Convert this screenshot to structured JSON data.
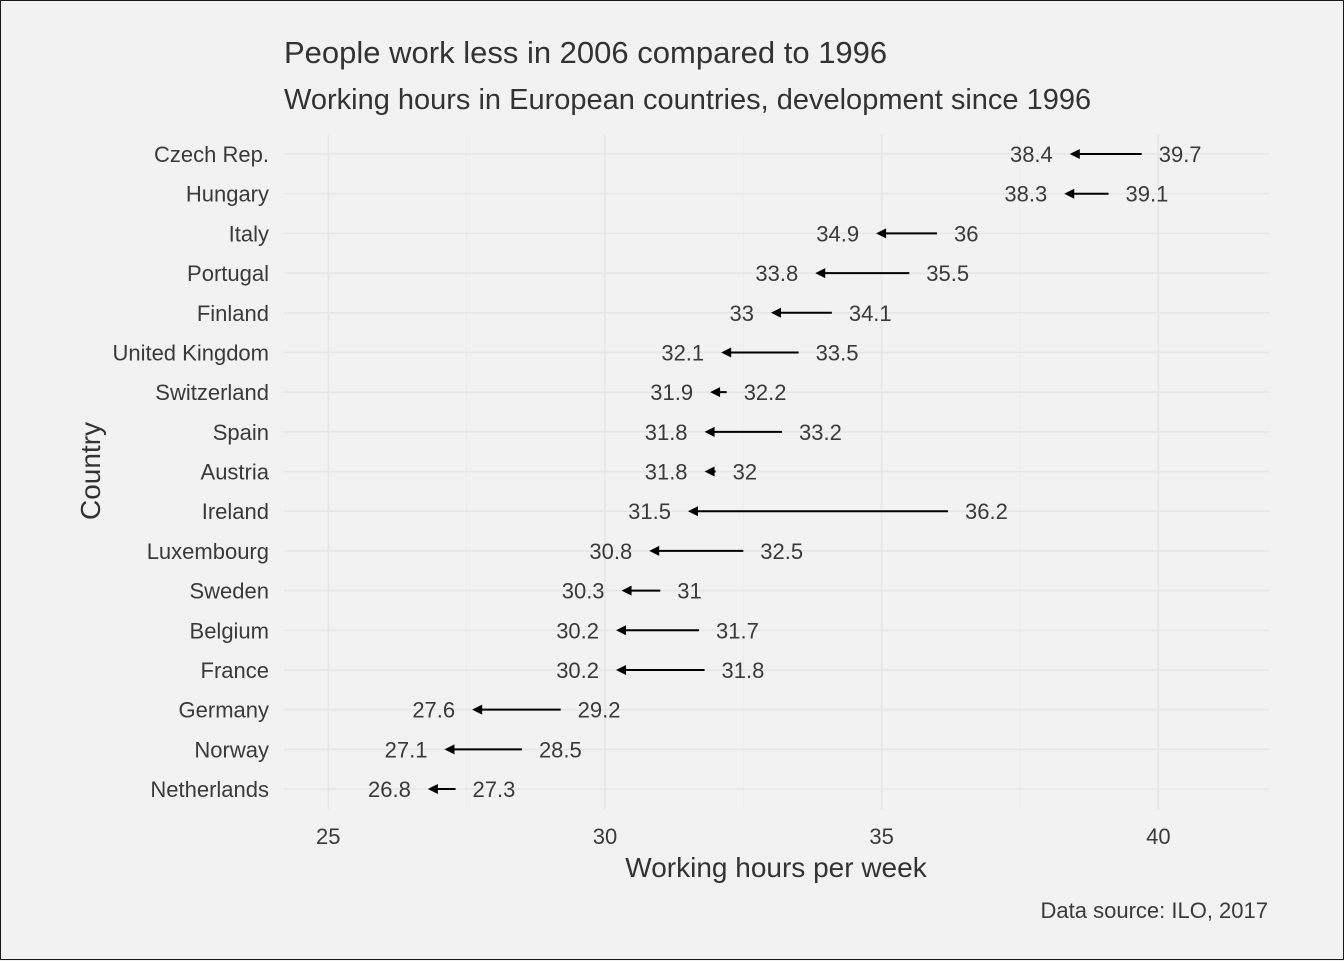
{
  "chart_data": {
    "type": "arrow_dot",
    "title": "People work less in 2006 compared to 1996",
    "subtitle": "Working hours in European countries, development since 1996",
    "xlabel": "Working hours per week",
    "ylabel": "Country",
    "caption": "Data source: ILO, 2017",
    "xlim": [
      24.2,
      42.0
    ],
    "x_ticks": [
      25,
      30,
      35,
      40
    ],
    "grid": true,
    "arrow_color": "#000000",
    "categories": [
      "Czech Rep.",
      "Hungary",
      "Italy",
      "Portugal",
      "Finland",
      "United Kingdom",
      "Switzerland",
      "Spain",
      "Austria",
      "Ireland",
      "Luxembourg",
      "Sweden",
      "Belgium",
      "France",
      "Germany",
      "Norway",
      "Netherlands"
    ],
    "values_1996": [
      39.7,
      39.1,
      36,
      35.5,
      34.1,
      33.5,
      32.2,
      33.2,
      32,
      36.2,
      32.5,
      31,
      31.7,
      31.8,
      29.2,
      28.5,
      27.3
    ],
    "values_2006": [
      38.4,
      38.3,
      34.9,
      33.8,
      33,
      32.1,
      31.9,
      31.8,
      31.8,
      31.5,
      30.8,
      30.3,
      30.2,
      30.2,
      27.6,
      27.1,
      26.8
    ]
  }
}
